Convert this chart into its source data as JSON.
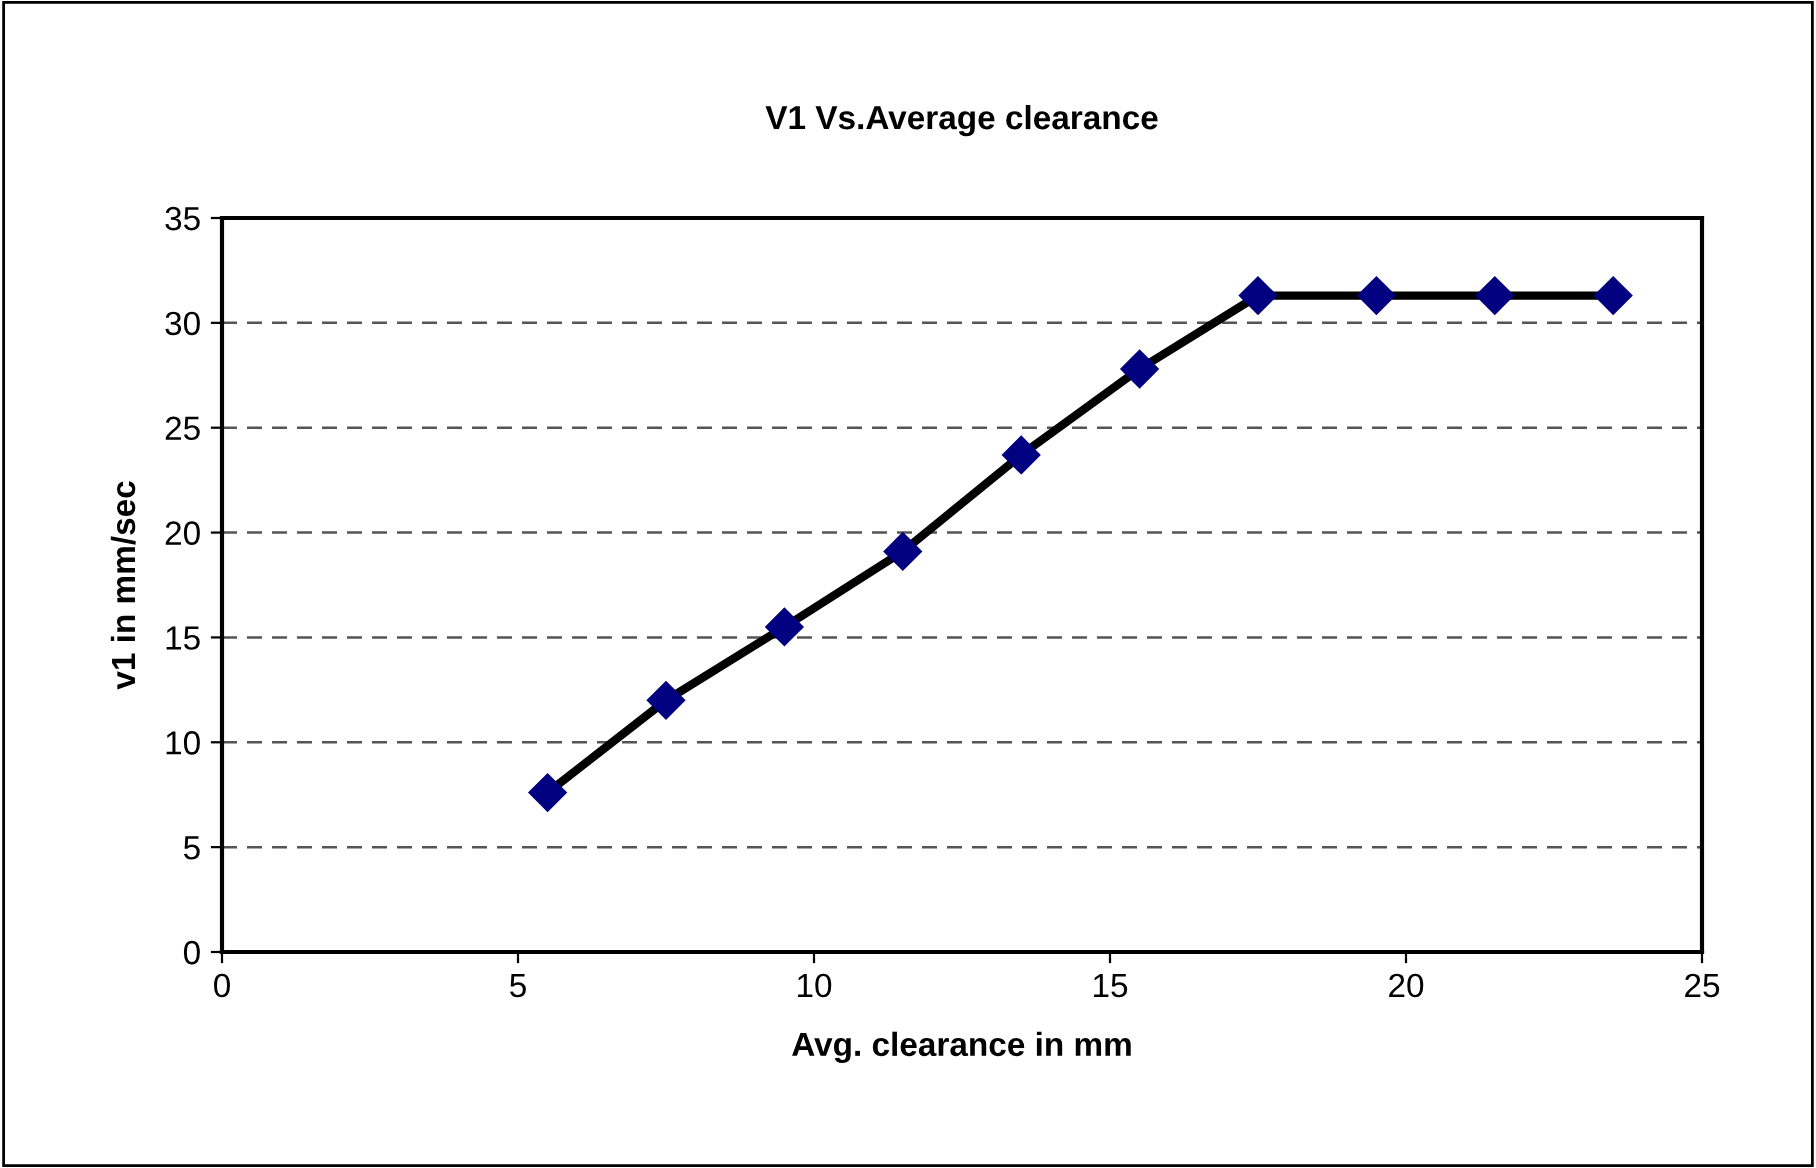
{
  "chart_data": {
    "type": "line",
    "title": "V1 Vs.Average clearance",
    "xlabel": "Avg. clearance in mm",
    "ylabel": "v1 in mm/sec",
    "x": [
      5.5,
      7.5,
      9.5,
      11.5,
      13.5,
      15.5,
      17.5,
      19.5,
      21.5,
      23.5
    ],
    "series": [
      {
        "color": "#000080",
        "values": [
          7.6,
          12.0,
          15.5,
          19.1,
          23.7,
          27.8,
          31.3,
          31.3,
          31.3,
          31.3
        ]
      }
    ],
    "xlim": [
      0,
      25
    ],
    "xticks": [
      0,
      5,
      10,
      15,
      20,
      25
    ],
    "ylim": [
      0,
      35
    ],
    "yticks": [
      0,
      5,
      10,
      15,
      20,
      25,
      30,
      35
    ],
    "grid": "y",
    "marker": "diamond",
    "line_style": "solid",
    "legend": false
  }
}
